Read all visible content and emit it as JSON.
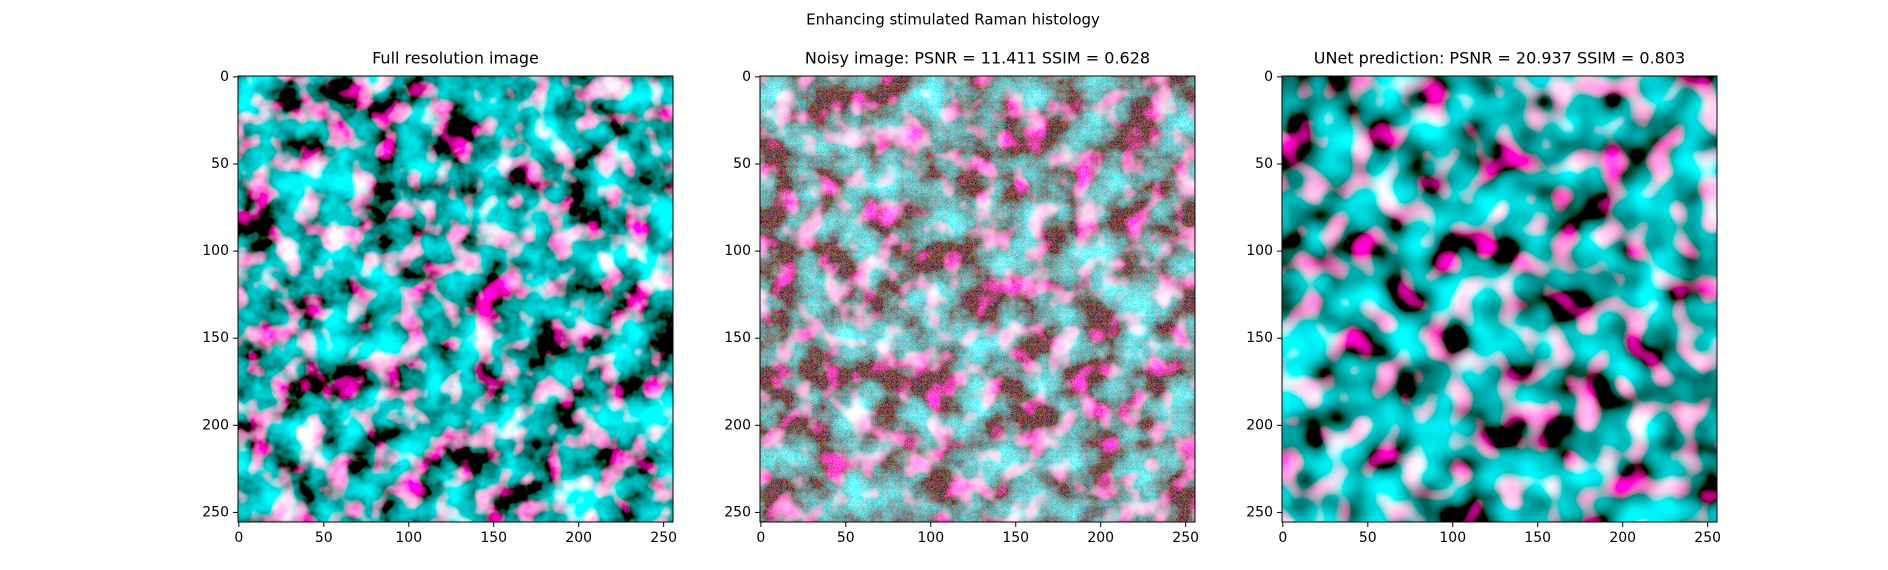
{
  "title": "Enhancing stimulated Raman histology",
  "chart_data": [
    {
      "type": "image",
      "title": "Full resolution image",
      "xlim": [
        -0.5,
        255.5
      ],
      "ylim": [
        255.5,
        -0.5
      ],
      "xticks": [
        0,
        50,
        100,
        150,
        200,
        250
      ],
      "yticks": [
        0,
        50,
        100,
        150,
        200,
        250
      ]
    },
    {
      "type": "image",
      "title": "Noisy image: PSNR = 11.411 SSIM = 0.628",
      "xlim": [
        -0.5,
        255.5
      ],
      "ylim": [
        255.5,
        -0.5
      ],
      "xticks": [
        0,
        50,
        100,
        150,
        200,
        250
      ],
      "yticks": [
        0,
        50,
        100,
        150,
        200,
        250
      ]
    },
    {
      "type": "image",
      "title": "UNet prediction: PSNR = 20.937 SSIM = 0.803",
      "xlim": [
        -0.5,
        255.5
      ],
      "ylim": [
        255.5,
        -0.5
      ],
      "xticks": [
        0,
        50,
        100,
        150,
        200,
        250
      ],
      "yticks": [
        0,
        50,
        100,
        150,
        200,
        250
      ]
    }
  ]
}
